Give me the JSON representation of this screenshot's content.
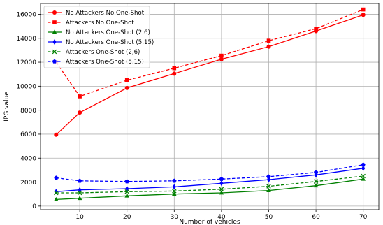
{
  "chart_data": {
    "type": "line",
    "xlabel": "Number of vehicles",
    "ylabel": "IPG value",
    "x": [
      5,
      10,
      20,
      30,
      40,
      50,
      60,
      70
    ],
    "xticks": [
      10,
      20,
      30,
      40,
      50,
      60,
      70
    ],
    "yticks": [
      0,
      2000,
      4000,
      6000,
      8000,
      10000,
      12000,
      14000,
      16000
    ],
    "xlim": [
      1.7,
      73.3
    ],
    "ylim": [
      -300,
      16900
    ],
    "grid": true,
    "legend_position": "top-left",
    "series": [
      {
        "name": "No Attackers No One-Shot",
        "color": "#ff0000",
        "marker": "circle",
        "dash": "solid",
        "values": [
          5950,
          7800,
          9850,
          11050,
          12250,
          13300,
          14600,
          15950
        ]
      },
      {
        "name": "Attackers No One-Shot",
        "color": "#ff0000",
        "marker": "square",
        "dash": "dashed",
        "values": [
          12000,
          9150,
          10500,
          11500,
          12550,
          13800,
          14800,
          16400
        ]
      },
      {
        "name": "No Attackers One-Shot (2,6)",
        "color": "#008000",
        "marker": "triangle",
        "dash": "solid",
        "values": [
          550,
          650,
          850,
          1000,
          1100,
          1300,
          1700,
          2250
        ]
      },
      {
        "name": "No Attackers One-Shot (5,15)",
        "color": "#0000ff",
        "marker": "diamond",
        "dash": "solid",
        "values": [
          1200,
          1350,
          1450,
          1600,
          1900,
          2200,
          2600,
          3150
        ]
      },
      {
        "name": "Attackers One-Shot (2,6)",
        "color": "#008000",
        "marker": "x",
        "dash": "dashed",
        "values": [
          1100,
          1100,
          1200,
          1250,
          1400,
          1650,
          2050,
          2500
        ]
      },
      {
        "name": "Attackers One-Shot (5,15)",
        "color": "#0000ff",
        "marker": "pentagon",
        "dash": "dashed",
        "values": [
          2350,
          2100,
          2050,
          2100,
          2250,
          2450,
          2800,
          3450
        ]
      }
    ]
  }
}
